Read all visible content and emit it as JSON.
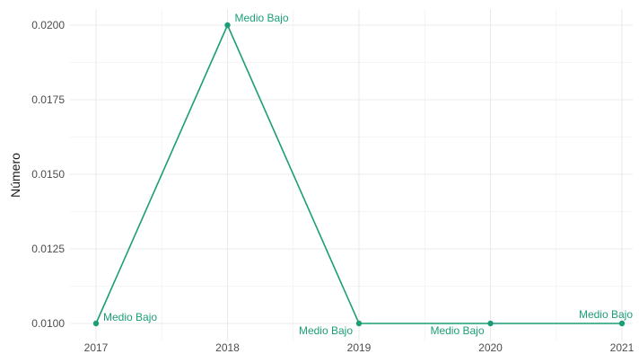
{
  "chart_data": {
    "type": "line",
    "title": "",
    "xlabel": "",
    "ylabel": "Número",
    "x": [
      2017,
      2018,
      2019,
      2020,
      2021
    ],
    "xticks": [
      "2017",
      "2018",
      "2019",
      "2020",
      "2021"
    ],
    "yticks": [
      "0.0100",
      "0.0125",
      "0.0150",
      "0.0175",
      "0.0200"
    ],
    "ylim": [
      0.01,
      0.02
    ],
    "series": [
      {
        "values": [
          0.01,
          0.02,
          0.01,
          0.01,
          0.01
        ],
        "labels": [
          "Medio Bajo",
          "Medio Bajo",
          "Medio Bajo",
          "Medio Bajo",
          "Medio Bajo"
        ],
        "color": "#1b9e77"
      }
    ],
    "grid": true,
    "legend": "none"
  }
}
